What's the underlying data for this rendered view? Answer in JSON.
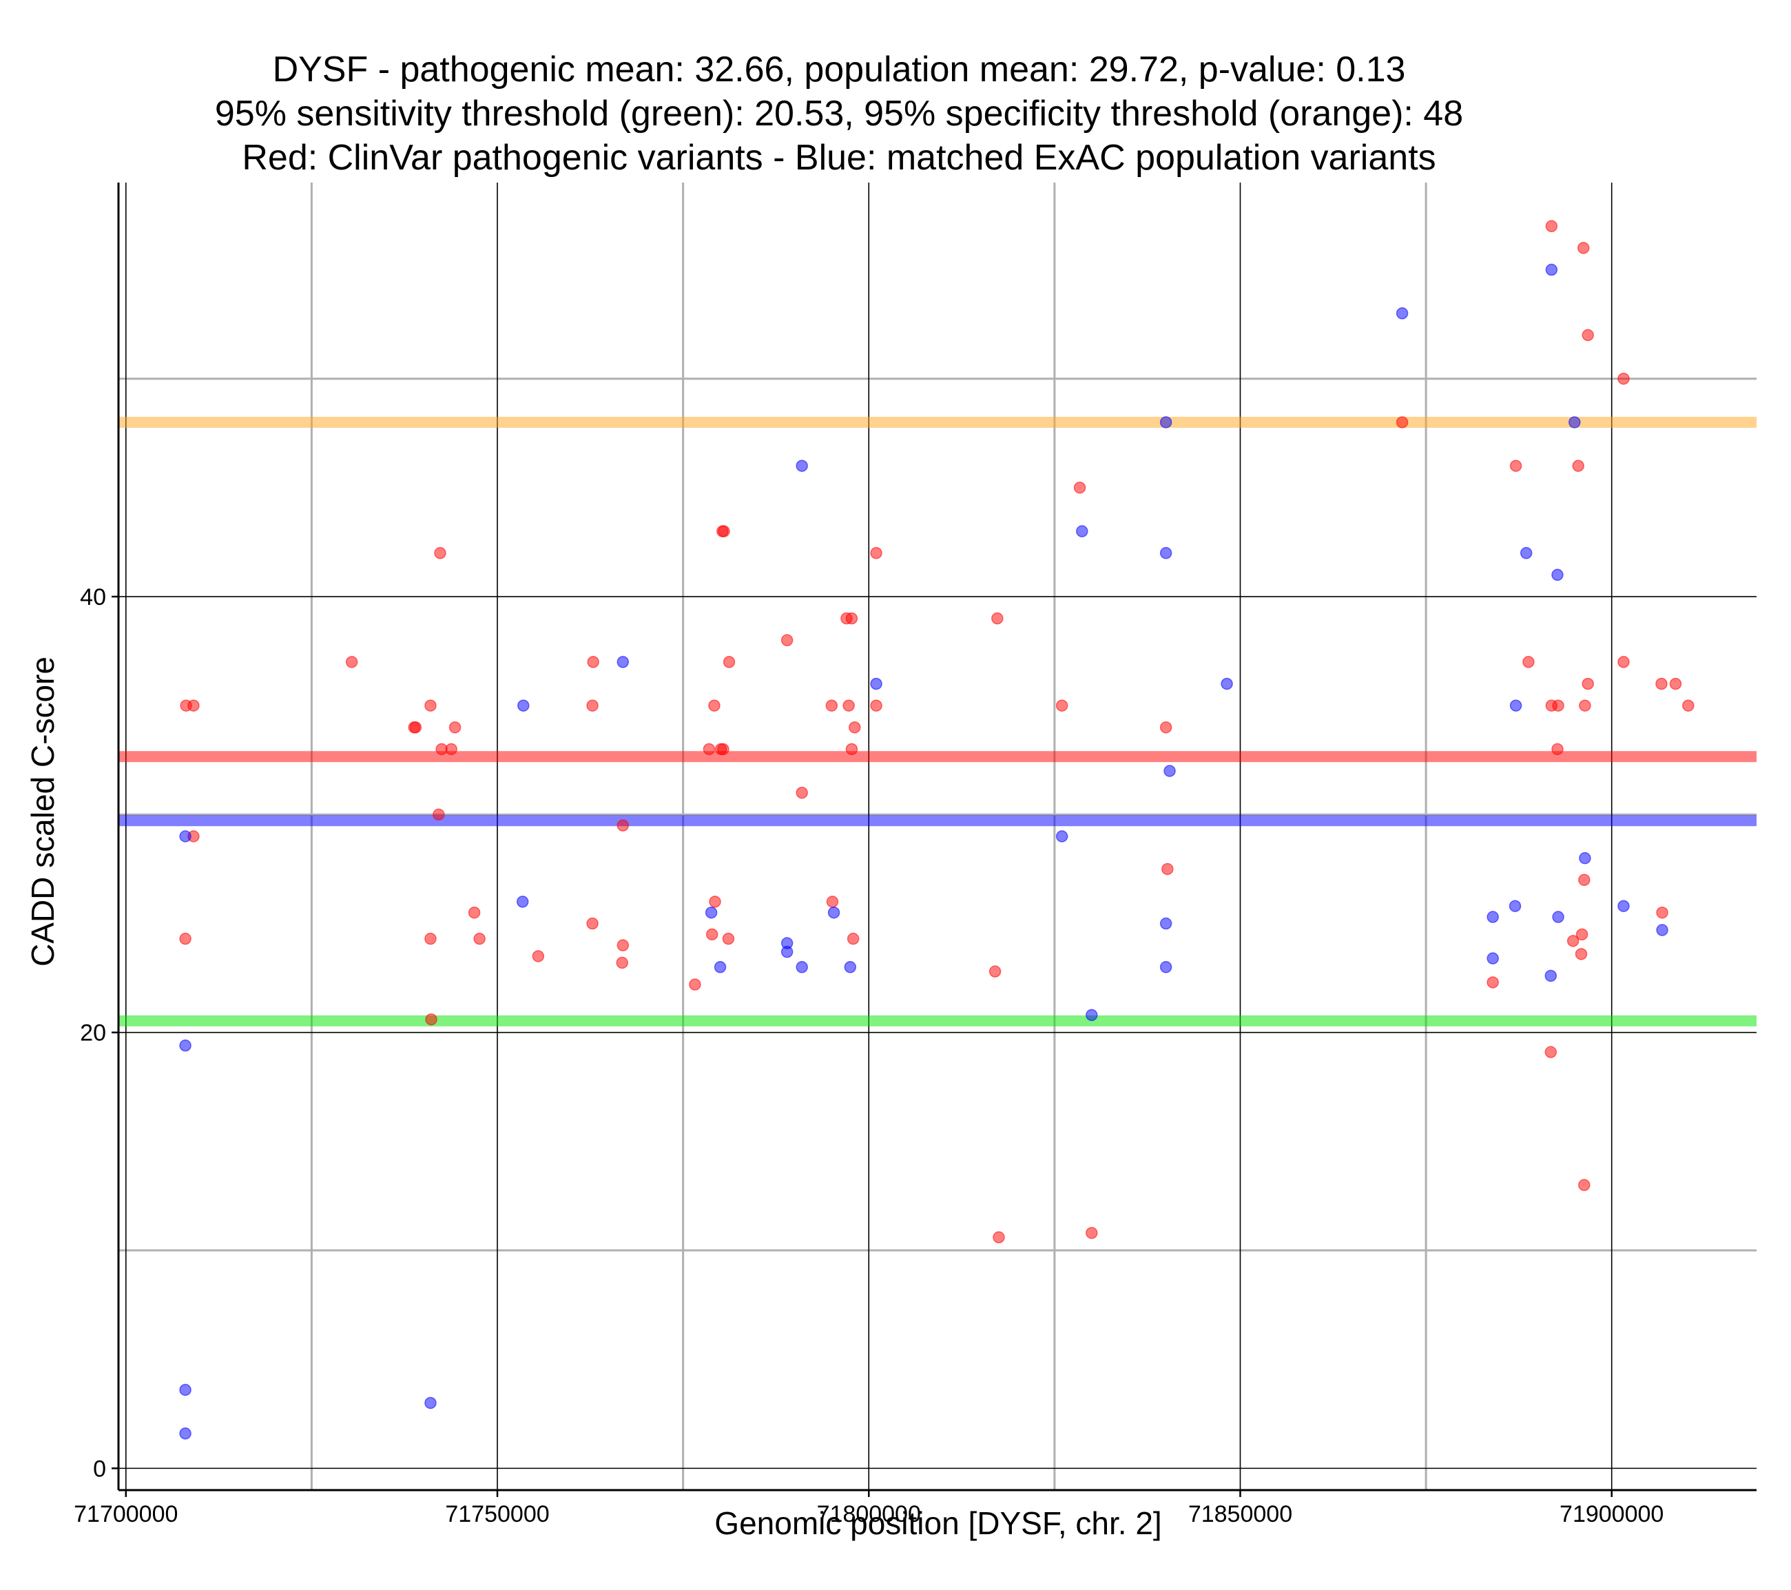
{
  "colors": {
    "pathogenic": "#ff0000",
    "population": "#0000ff",
    "sensitivity_threshold": "#00e600",
    "specificity_threshold": "#ffa520",
    "grid_major": "#000000",
    "grid_minor": "#b0b0b0"
  },
  "chart_data": {
    "type": "scatter",
    "title_lines": [
      "DYSF - pathogenic mean: 32.66, population mean: 29.72, p-value: 0.13",
      "95% sensitivity threshold (green): 20.53, 95% specificity threshold (orange): 48",
      "Red: ClinVar pathogenic variants - Blue: matched ExAC population variants"
    ],
    "xlabel": "Genomic position [DYSF, chr. 2]",
    "ylabel": "CADD scaled C-score",
    "xlim": [
      71699000,
      71919500
    ],
    "ylim": [
      -1,
      59
    ],
    "x_ticks": [
      71700000,
      71750000,
      71800000,
      71850000,
      71900000
    ],
    "x_tick_labels": [
      "71700000",
      "71750000",
      "71800000",
      "71850000",
      "71900000"
    ],
    "x_minor_ticks": [
      71725000,
      71775000,
      71825000,
      71875000
    ],
    "y_ticks": [
      0,
      20,
      40
    ],
    "y_tick_labels": [
      "0",
      "20",
      "40"
    ],
    "y_minor_ticks": [
      10,
      30,
      50
    ],
    "hlines": [
      {
        "name": "specificity-threshold",
        "y": 48,
        "color": "#ffa520"
      },
      {
        "name": "pathogenic-mean",
        "y": 32.66,
        "color": "#ff0000"
      },
      {
        "name": "population-mean",
        "y": 29.72,
        "color": "#0000ff"
      },
      {
        "name": "sensitivity-threshold",
        "y": 20.53,
        "color": "#00e600"
      }
    ],
    "series": [
      {
        "name": "ClinVar pathogenic variants",
        "color": "#ff0000",
        "points": [
          [
            71891900,
            57
          ],
          [
            71896200,
            56
          ],
          [
            71896800,
            52
          ],
          [
            71901600,
            50
          ],
          [
            71871800,
            48
          ],
          [
            71887100,
            46
          ],
          [
            71895500,
            46
          ],
          [
            71828400,
            45
          ],
          [
            71780300,
            43
          ],
          [
            71780500,
            43
          ],
          [
            71742300,
            42
          ],
          [
            71801000,
            42
          ],
          [
            71797000,
            39
          ],
          [
            71797700,
            39
          ],
          [
            71817300,
            39
          ],
          [
            71789000,
            38
          ],
          [
            71730400,
            37
          ],
          [
            71762900,
            37
          ],
          [
            71781200,
            37
          ],
          [
            71888800,
            37
          ],
          [
            71901600,
            37
          ],
          [
            71896800,
            36
          ],
          [
            71906700,
            36
          ],
          [
            71908600,
            36
          ],
          [
            71708100,
            35
          ],
          [
            71709100,
            35
          ],
          [
            71741000,
            35
          ],
          [
            71762800,
            35
          ],
          [
            71779200,
            35
          ],
          [
            71795000,
            35
          ],
          [
            71797300,
            35
          ],
          [
            71801000,
            35
          ],
          [
            71826000,
            35
          ],
          [
            71891900,
            35
          ],
          [
            71892800,
            35
          ],
          [
            71896400,
            35
          ],
          [
            71910300,
            35
          ],
          [
            71738800,
            34
          ],
          [
            71739000,
            34
          ],
          [
            71744300,
            34
          ],
          [
            71798100,
            34
          ],
          [
            71840000,
            34
          ],
          [
            71742500,
            33
          ],
          [
            71743800,
            33
          ],
          [
            71778500,
            33
          ],
          [
            71780100,
            33
          ],
          [
            71780400,
            33
          ],
          [
            71797700,
            33
          ],
          [
            71892700,
            33
          ],
          [
            71791000,
            31
          ],
          [
            71742100,
            30
          ],
          [
            71766900,
            29.5
          ],
          [
            71709100,
            29
          ],
          [
            71840200,
            27.5
          ],
          [
            71896300,
            27
          ],
          [
            71779300,
            26
          ],
          [
            71795100,
            26
          ],
          [
            71746900,
            25.5
          ],
          [
            71906800,
            25.5
          ],
          [
            71762800,
            25
          ],
          [
            71896000,
            24.5
          ],
          [
            71778900,
            24.5
          ],
          [
            71708000,
            24.3
          ],
          [
            71741000,
            24.3
          ],
          [
            71747600,
            24.3
          ],
          [
            71781100,
            24.3
          ],
          [
            71797900,
            24.3
          ],
          [
            71894800,
            24.2
          ],
          [
            71766900,
            24
          ],
          [
            71895900,
            23.6
          ],
          [
            71755500,
            23.5
          ],
          [
            71766800,
            23.2
          ],
          [
            71817000,
            22.8
          ],
          [
            71884000,
            22.3
          ],
          [
            71776600,
            22.2
          ],
          [
            71741100,
            20.6
          ],
          [
            71891800,
            19.1
          ],
          [
            71896300,
            13
          ],
          [
            71830000,
            10.8
          ],
          [
            71817500,
            10.6
          ]
        ]
      },
      {
        "name": "matched ExAC population variants",
        "color": "#0000ff",
        "points": [
          [
            71891900,
            55
          ],
          [
            71871800,
            53
          ],
          [
            71840000,
            48
          ],
          [
            71895000,
            48
          ],
          [
            71791000,
            46
          ],
          [
            71828700,
            43
          ],
          [
            71840000,
            42
          ],
          [
            71888500,
            42
          ],
          [
            71892700,
            41
          ],
          [
            71766900,
            37
          ],
          [
            71801000,
            36
          ],
          [
            71848200,
            36
          ],
          [
            71753500,
            35
          ],
          [
            71887100,
            35
          ],
          [
            71840500,
            32
          ],
          [
            71708000,
            29
          ],
          [
            71826000,
            29
          ],
          [
            71896400,
            28
          ],
          [
            71753400,
            26
          ],
          [
            71887000,
            25.8
          ],
          [
            71901600,
            25.8
          ],
          [
            71778800,
            25.5
          ],
          [
            71795300,
            25.5
          ],
          [
            71884000,
            25.3
          ],
          [
            71892800,
            25.3
          ],
          [
            71840000,
            25
          ],
          [
            71906800,
            24.7
          ],
          [
            71789000,
            24.1
          ],
          [
            71789000,
            23.7
          ],
          [
            71884000,
            23.4
          ],
          [
            71780000,
            23
          ],
          [
            71791000,
            23
          ],
          [
            71797500,
            23
          ],
          [
            71840000,
            23
          ],
          [
            71891800,
            22.6
          ],
          [
            71830000,
            20.8
          ],
          [
            71708000,
            19.4
          ],
          [
            71708000,
            3.6
          ],
          [
            71741000,
            3
          ],
          [
            71708000,
            1.6
          ]
        ]
      }
    ]
  }
}
